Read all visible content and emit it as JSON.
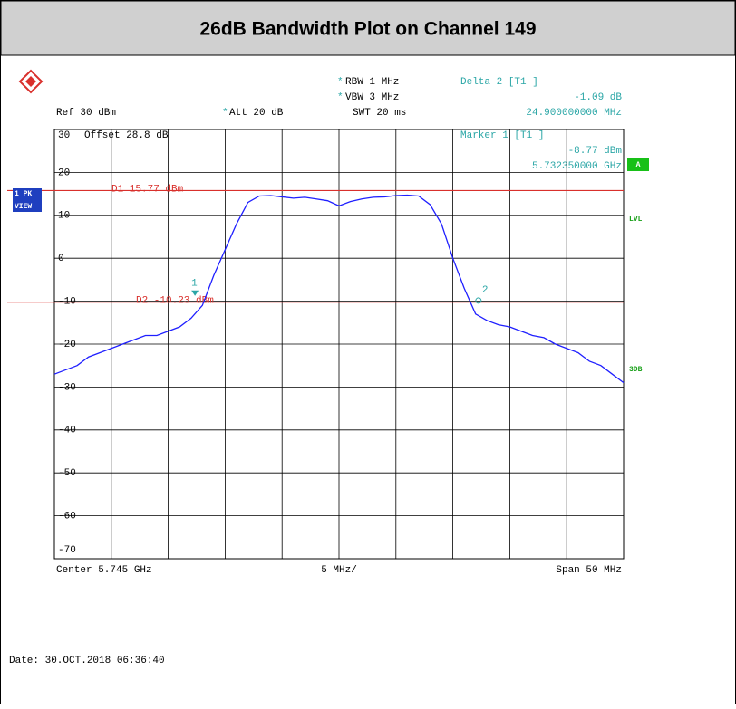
{
  "chart_data": {
    "type": "line",
    "title": "26dB Bandwidth Plot on Channel 149",
    "star": "*",
    "header": {
      "rbw": "RBW 1 MHz",
      "vbw": "VBW 3 MHz",
      "swt": "SWT 20 ms",
      "ref": "Ref 30 dBm",
      "att": "Att 20 dB",
      "delta_title": "Delta 2 [T1 ]",
      "delta_level": "-1.09 dB",
      "delta_freq": "24.900000000 MHz",
      "marker_title": "Marker 1 [T1 ]",
      "marker_level": "-8.77 dBm",
      "marker_freq": "5.732350000 GHz",
      "offset": "Offset 28.8 dB"
    },
    "footer": {
      "center": "Center 5.745 GHz",
      "div": "5 MHz/",
      "span": "Span 50 MHz",
      "date": "Date: 30.OCT.2018  06:36:40"
    },
    "side": {
      "trace": "1 PK",
      "view": "VIEW",
      "a": "A",
      "lvl": "LVL",
      "db3": "3DB"
    },
    "xlim": [
      5720,
      5770
    ],
    "x": [
      5720,
      5721,
      5722,
      5723,
      5724,
      5725,
      5726,
      5727,
      5728,
      5729,
      5730,
      5731,
      5732,
      5733,
      5734,
      5735,
      5736,
      5737,
      5738,
      5739,
      5740,
      5741,
      5742,
      5743,
      5744,
      5745,
      5746,
      5747,
      5748,
      5749,
      5750,
      5751,
      5752,
      5753,
      5754,
      5755,
      5756,
      5757,
      5758,
      5759,
      5760,
      5761,
      5762,
      5763,
      5764,
      5765,
      5766,
      5767,
      5768,
      5769,
      5770
    ],
    "series": [
      {
        "name": "1 PK",
        "color": "#1f1fff",
        "values": [
          -27,
          -26,
          -25,
          -23,
          -22,
          -21,
          -20,
          -19,
          -18,
          -18,
          -17,
          -16,
          -14,
          -11,
          -4,
          2,
          8,
          13,
          14.5,
          14.6,
          14.3,
          14,
          14.2,
          13.8,
          13.4,
          12.2,
          13.2,
          13.8,
          14.2,
          14.3,
          14.6,
          14.7,
          14.5,
          12.5,
          8,
          0,
          -7,
          -13,
          -14.5,
          -15.5,
          -16,
          -17,
          -18,
          -18.5,
          -20,
          -21,
          -22,
          -24,
          -25,
          -27,
          -29
        ]
      }
    ],
    "ylim": [
      -70,
      30
    ],
    "yticks": [
      30,
      20,
      10,
      0,
      -10,
      -20,
      -30,
      -40,
      -50,
      -60,
      -70
    ],
    "display_lines": [
      {
        "label": "D1 15.77 dBm",
        "value": 15.77,
        "color": "#d9302c"
      },
      {
        "label": "D2 -10.23 dBm",
        "value": -10.23,
        "color": "#d9302c"
      }
    ],
    "markers": [
      {
        "label": "1",
        "x": 5732.35,
        "value": -8.77
      },
      {
        "label": "2",
        "x": 5757.25,
        "value": -9.86
      }
    ]
  }
}
